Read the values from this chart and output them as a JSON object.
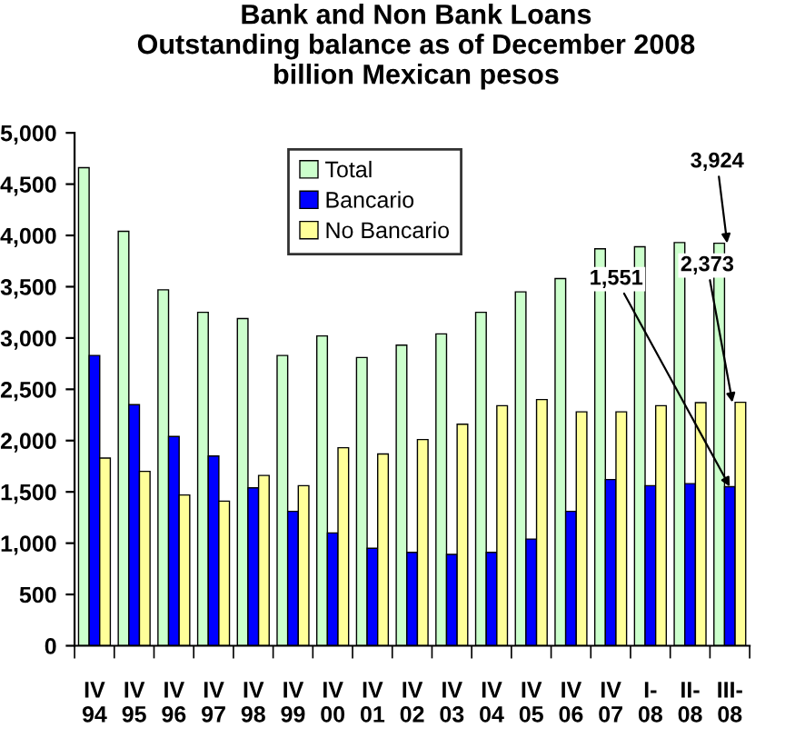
{
  "chart_data": {
    "type": "bar",
    "title": "Bank and Non Bank Loans\nOutstanding balance as of December 2008\nbillion Mexican pesos",
    "categories": [
      "IV\n94",
      "IV\n95",
      "IV\n96",
      "IV\n97",
      "IV\n98",
      "IV\n99",
      "IV\n00",
      "IV\n01",
      "IV\n02",
      "IV\n03",
      "IV\n04",
      "IV\n05",
      "IV\n06",
      "IV\n07",
      "I-\n08",
      "II-\n08",
      "III-\n08"
    ],
    "series": [
      {
        "name": "Total",
        "color": "#ccffcc",
        "values": [
          4660,
          4040,
          3470,
          3250,
          3190,
          2830,
          3020,
          2810,
          2930,
          3040,
          3250,
          3450,
          3580,
          3870,
          3890,
          3930,
          3924
        ]
      },
      {
        "name": "Bancario",
        "color": "#0000ff",
        "values": [
          2830,
          2350,
          2040,
          1850,
          1540,
          1310,
          1100,
          950,
          910,
          890,
          910,
          1040,
          1310,
          1620,
          1560,
          1580,
          1551
        ]
      },
      {
        "name": "No Bancario",
        "color": "#ffff99",
        "values": [
          1830,
          1700,
          1470,
          1410,
          1660,
          1560,
          1930,
          1870,
          2010,
          2160,
          2340,
          2400,
          2280,
          2280,
          2340,
          2370,
          2373
        ]
      }
    ],
    "annotations": [
      {
        "text": "3,924",
        "x": "III-\n08",
        "y": 3924
      },
      {
        "text": "1,551",
        "x": "III-\n08",
        "y": 1551
      },
      {
        "text": "2,373",
        "x": "III-\n08",
        "y": 2373
      }
    ],
    "ylim": [
      0,
      5000
    ],
    "yticks": [
      {
        "value": 0,
        "label": "0"
      },
      {
        "value": 500,
        "label": "500"
      },
      {
        "value": 1000,
        "label": "1,000"
      },
      {
        "value": 1500,
        "label": "1,500"
      },
      {
        "value": 2000,
        "label": "2,000"
      },
      {
        "value": 2500,
        "label": "2,500"
      },
      {
        "value": 3000,
        "label": "3,000"
      },
      {
        "value": 3500,
        "label": "3,500"
      },
      {
        "value": 4000,
        "label": "4,000"
      },
      {
        "value": 4500,
        "label": "4,500"
      },
      {
        "value": 5000,
        "label": "5,000"
      }
    ],
    "grid": false,
    "legend": "top"
  }
}
